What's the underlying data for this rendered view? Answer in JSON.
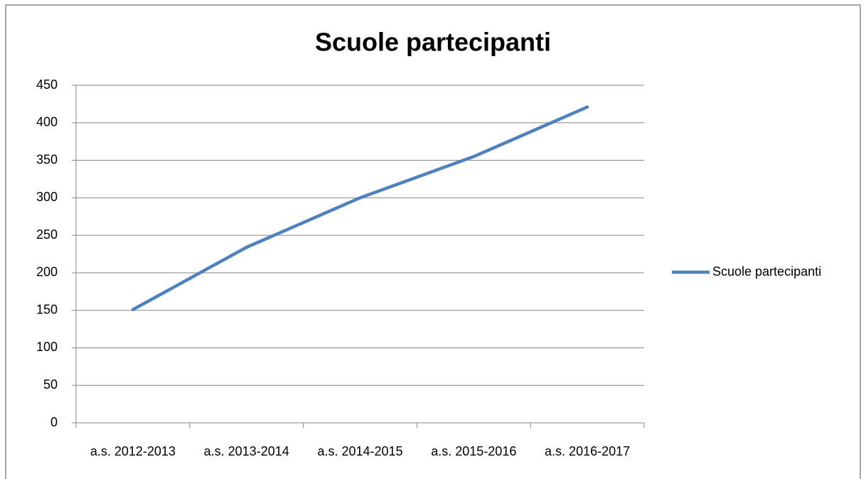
{
  "chart_data": {
    "type": "line",
    "title": "Scuole partecipanti",
    "categories": [
      "a.s. 2012-2013",
      "a.s. 2013-2014",
      "a.s. 2014-2015",
      "a.s. 2015-2016",
      "a.s. 2016-2017"
    ],
    "series": [
      {
        "name": "Scuole partecipanti",
        "color": "#4f81bd",
        "values": [
          151,
          234,
          300,
          355,
          421
        ]
      }
    ],
    "ylim": [
      0,
      450
    ],
    "yticks": [
      0,
      50,
      100,
      150,
      200,
      250,
      300,
      350,
      400,
      450
    ],
    "grid": true,
    "legend": "right"
  }
}
